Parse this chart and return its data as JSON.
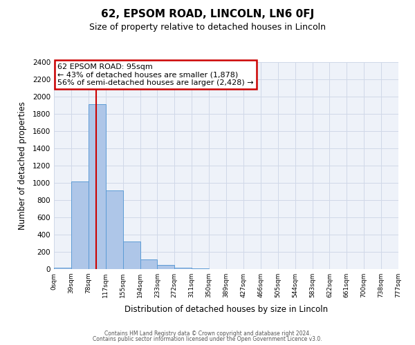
{
  "title": "62, EPSOM ROAD, LINCOLN, LN6 0FJ",
  "subtitle": "Size of property relative to detached houses in Lincoln",
  "xlabel": "Distribution of detached houses by size in Lincoln",
  "ylabel": "Number of detached properties",
  "bin_edges": [
    0,
    39,
    78,
    117,
    155,
    194,
    233,
    272,
    311,
    350,
    389,
    427,
    466,
    505,
    544,
    583,
    622,
    661,
    700,
    738,
    777
  ],
  "bin_labels": [
    "0sqm",
    "39sqm",
    "78sqm",
    "117sqm",
    "155sqm",
    "194sqm",
    "233sqm",
    "272sqm",
    "311sqm",
    "350sqm",
    "389sqm",
    "427sqm",
    "466sqm",
    "505sqm",
    "544sqm",
    "583sqm",
    "622sqm",
    "661sqm",
    "700sqm",
    "738sqm",
    "777sqm"
  ],
  "bar_heights": [
    15,
    1020,
    1910,
    910,
    320,
    110,
    45,
    20,
    10,
    0,
    0,
    0,
    0,
    0,
    0,
    0,
    0,
    0,
    0,
    0
  ],
  "bar_color": "#aec6e8",
  "bar_edge_color": "#5b9bd5",
  "vline_x": 95,
  "vline_color": "#cc0000",
  "ylim": [
    0,
    2400
  ],
  "yticks": [
    0,
    200,
    400,
    600,
    800,
    1000,
    1200,
    1400,
    1600,
    1800,
    2000,
    2200,
    2400
  ],
  "annotation_title": "62 EPSOM ROAD: 95sqm",
  "annotation_line1": "← 43% of detached houses are smaller (1,878)",
  "annotation_line2": "56% of semi-detached houses are larger (2,428) →",
  "annotation_box_color": "#cc0000",
  "grid_color": "#d0d8e8",
  "background_color": "#eef2f9",
  "footer1": "Contains HM Land Registry data © Crown copyright and database right 2024.",
  "footer2": "Contains public sector information licensed under the Open Government Licence v3.0."
}
